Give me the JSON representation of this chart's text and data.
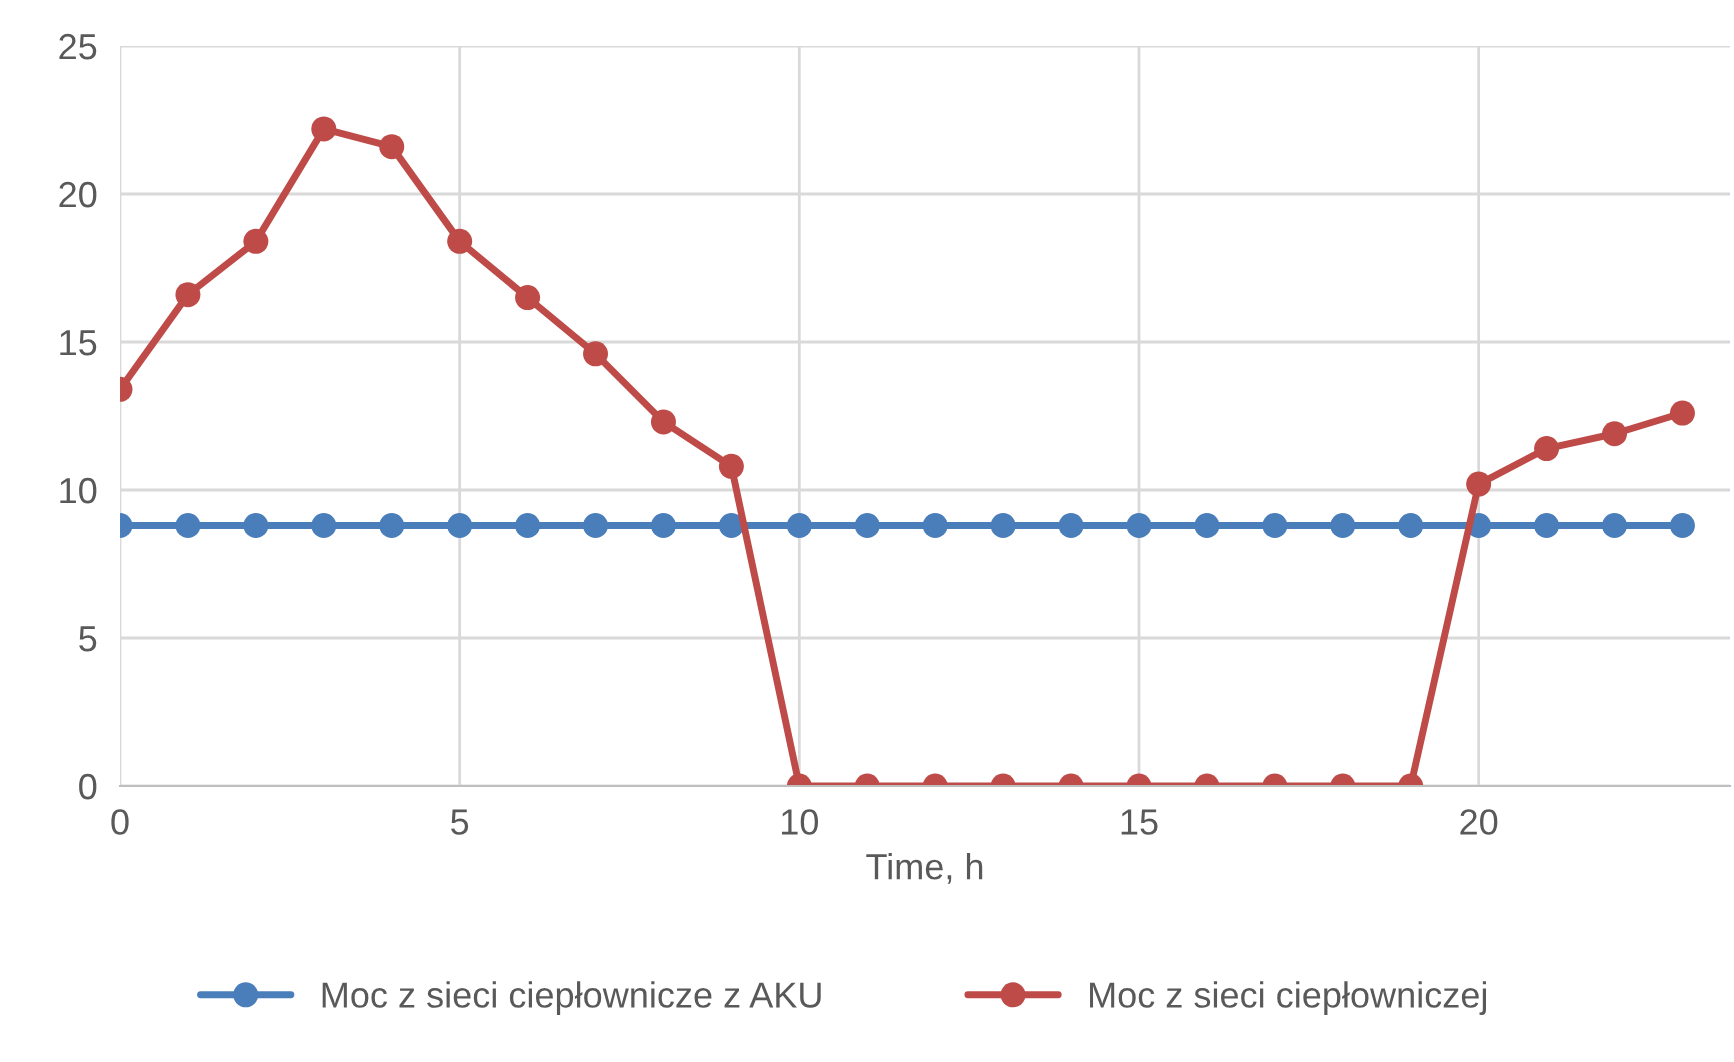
{
  "chart_data": {
    "type": "line",
    "xlabel": "Time, h",
    "x": [
      0,
      1,
      2,
      3,
      4,
      5,
      6,
      7,
      8,
      9,
      10,
      11,
      12,
      13,
      14,
      15,
      16,
      17,
      18,
      19,
      20,
      21,
      22,
      23
    ],
    "series": [
      {
        "name": "Moc z sieci ciepłownicze z AKU",
        "color": "#4a7ebb",
        "values": [
          8.8,
          8.8,
          8.8,
          8.8,
          8.8,
          8.8,
          8.8,
          8.8,
          8.8,
          8.8,
          8.8,
          8.8,
          8.8,
          8.8,
          8.8,
          8.8,
          8.8,
          8.8,
          8.8,
          8.8,
          8.8,
          8.8,
          8.8,
          8.8
        ]
      },
      {
        "name": "Moc z sieci ciepłowniczej",
        "color": "#be4b48",
        "values": [
          13.4,
          16.6,
          18.4,
          22.2,
          21.6,
          18.4,
          16.5,
          14.6,
          12.3,
          10.8,
          0,
          0,
          0,
          0,
          0,
          0,
          0,
          0,
          0,
          0,
          10.2,
          11.4,
          11.9,
          12.6
        ]
      }
    ],
    "xlim": [
      0,
      23.7
    ],
    "xticks": [
      0,
      5,
      10,
      15,
      20
    ],
    "ylim": [
      0,
      25
    ],
    "yticks": [
      0,
      5,
      10,
      15,
      20,
      25
    ],
    "grid": true,
    "legend": "bottom",
    "marker": "circle",
    "line_style": "solid"
  }
}
